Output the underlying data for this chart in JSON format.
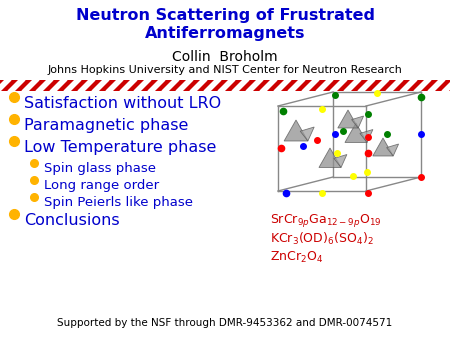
{
  "title_line1": "Neutron Scattering of Frustrated",
  "title_line2": "Antiferromagnets",
  "title_color": "#0000CC",
  "author": "Collin  Broholm",
  "institution": "Johns Hopkins University and NIST Center for Neutron Research",
  "author_color": "#000000",
  "divider_color": "#CC0000",
  "bg_color": "#FFFFFF",
  "bullet_color": "#FFB300",
  "bullet_text_color": "#0000CC",
  "red_text_color": "#CC0000",
  "bullet_items": [
    {
      "text": "Satisfaction without LRO",
      "level": 0
    },
    {
      "text": "Paramagnetic phase",
      "level": 0
    },
    {
      "text": "Low Temperature phase",
      "level": 0
    },
    {
      "text": "Spin glass phase",
      "level": 1
    },
    {
      "text": "Long range order",
      "level": 1
    },
    {
      "text": "Spin Peierls like phase",
      "level": 1
    },
    {
      "text": "Conclusions",
      "level": 0
    }
  ],
  "footer": "Supported by the NSF through DMR-9453362 and DMR-0074571",
  "footer_color": "#000000"
}
